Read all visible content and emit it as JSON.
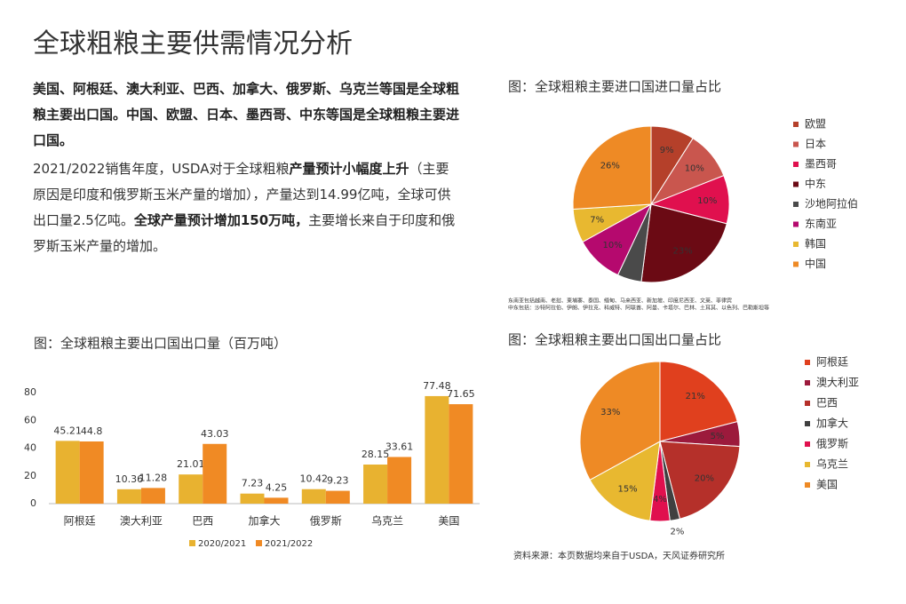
{
  "title": "全球粗粮主要供需情况分析",
  "paragraph1": "美国、阿根廷、澳大利亚、巴西、加拿大、俄罗斯、乌克兰等国是全球粗粮主要出口国。中国、欧盟、日本、墨西哥、中东等国是全球粗粮主要进口国。",
  "paragraph2": [
    {
      "text": "2021/2022销售年度，USDA对于全球粗粮",
      "bold": false
    },
    {
      "text": "产量预计小幅度上升",
      "bold": true
    },
    {
      "text": "（主要原因是印度和俄罗斯玉米产量的增加），产量达到14.99亿吨，全球可供出口量2.5亿吨。",
      "bold": false
    },
    {
      "text": "全球产量预计增加150万吨，",
      "bold": true
    },
    {
      "text": "主要增长来自于印度和俄罗斯玉米产量的增加。",
      "bold": false
    }
  ],
  "chart_data": [
    {
      "type": "pie",
      "title": "图：全球粗粮主要进口国进口量占比",
      "categories": [
        "欧盟",
        "日本",
        "墨西哥",
        "中东",
        "沙地阿拉伯",
        "东南亚",
        "韩国",
        "中国"
      ],
      "values": [
        9,
        10,
        10,
        23,
        5,
        10,
        7,
        26
      ],
      "value_labels": [
        "9%",
        "10%",
        "10%",
        "23%",
        null,
        "10%",
        "7%",
        "26%"
      ],
      "colors": [
        "#b5402a",
        "#c9564e",
        "#e0104e",
        "#6b0a14",
        "#4a4a4a",
        "#b5096e",
        "#e8b830",
        "#ee8a25"
      ],
      "notes": [
        "东南亚包括越南、老挝、柬埔寨、泰国、缅甸、马来西亚、新加坡、印度尼西亚、文莱、菲律宾",
        "中东包括：沙特阿拉伯、伊朗、伊拉克、科威特、阿联酋、阿曼、卡塔尔、巴林、土耳其、以色列、巴勒斯坦等"
      ],
      "legend": "right"
    },
    {
      "type": "bar",
      "title": "图：全球粗粮主要出口国出口量（百万吨）",
      "categories": [
        "阿根廷",
        "澳大利亚",
        "巴西",
        "加拿大",
        "俄罗斯",
        "乌克兰",
        "美国"
      ],
      "series": [
        {
          "name": "2020/2021",
          "color": "#e8b230",
          "values": [
            45.21,
            10.36,
            21.01,
            7.23,
            10.42,
            28.15,
            77.48
          ]
        },
        {
          "name": "2021/2022",
          "color": "#f08a24",
          "values": [
            44.8,
            11.28,
            43.03,
            4.25,
            9.23,
            33.61,
            71.65
          ]
        }
      ],
      "ylim": [
        0,
        80
      ],
      "yticks": [
        0,
        20,
        40,
        60,
        80
      ],
      "grid": false,
      "legend": "bottom"
    },
    {
      "type": "pie",
      "title": "图：全球粗粮主要出口国出口量占比",
      "categories": [
        "阿根廷",
        "澳大利亚",
        "巴西",
        "加拿大",
        "俄罗斯",
        "乌克兰",
        "美国"
      ],
      "values": [
        21,
        5,
        20,
        2,
        4,
        15,
        33
      ],
      "value_labels": [
        "21%",
        "5%",
        "20%",
        "2%",
        "4%",
        "15%",
        "33%"
      ],
      "colors": [
        "#e0401e",
        "#9c1a3c",
        "#b5302a",
        "#404040",
        "#e0104e",
        "#e8b830",
        "#ee8a25"
      ],
      "legend": "right"
    }
  ],
  "source": "资料来源：本页数据均来自于USDA，天风证券研究所"
}
